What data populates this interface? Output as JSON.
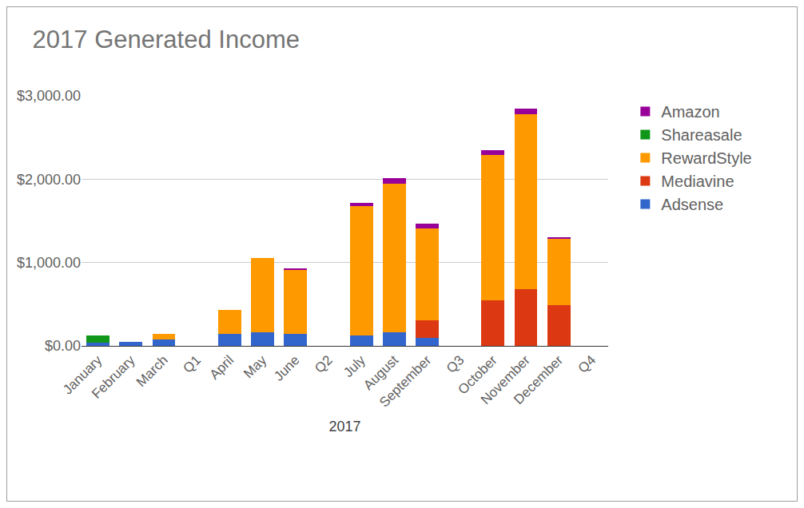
{
  "chart_data": {
    "type": "bar",
    "title": "2017 Generated Income",
    "x_label": "2017",
    "categories": [
      "January",
      "February",
      "March",
      "Q1",
      "April",
      "May",
      "June",
      "Q2",
      "July",
      "August",
      "September",
      "Q3",
      "October",
      "November",
      "December",
      "Q4"
    ],
    "series": [
      {
        "name": "Amazon",
        "color": "#990099",
        "values": [
          null,
          null,
          null,
          null,
          null,
          null,
          20,
          null,
          40,
          60,
          60,
          null,
          60,
          70,
          20,
          null
        ]
      },
      {
        "name": "Shareasale",
        "color": "#109618",
        "values": [
          80,
          null,
          null,
          null,
          null,
          null,
          null,
          null,
          null,
          null,
          null,
          null,
          null,
          null,
          null,
          null
        ]
      },
      {
        "name": "RewardStyle",
        "color": "#ff9900",
        "values": [
          null,
          null,
          60,
          null,
          290,
          890,
          770,
          null,
          1560,
          1790,
          1100,
          null,
          1740,
          2100,
          790,
          null
        ]
      },
      {
        "name": "Mediavine",
        "color": "#dc3912",
        "values": [
          null,
          null,
          null,
          null,
          null,
          null,
          null,
          null,
          null,
          null,
          210,
          null,
          550,
          680,
          490,
          null
        ]
      },
      {
        "name": "Adsense",
        "color": "#3366cc",
        "values": [
          40,
          45,
          80,
          null,
          140,
          160,
          140,
          null,
          120,
          160,
          100,
          null,
          null,
          null,
          null,
          null
        ]
      }
    ],
    "stacked": true,
    "grid": true,
    "legend": "right",
    "ylim": [
      0,
      3000
    ],
    "yticks": [
      {
        "value": 0,
        "label": "$0.00"
      },
      {
        "value": 1000,
        "label": "$1,000.00"
      },
      {
        "value": 2000,
        "label": "$2,000.00"
      },
      {
        "value": 3000,
        "label": "$3,000.00"
      }
    ]
  }
}
